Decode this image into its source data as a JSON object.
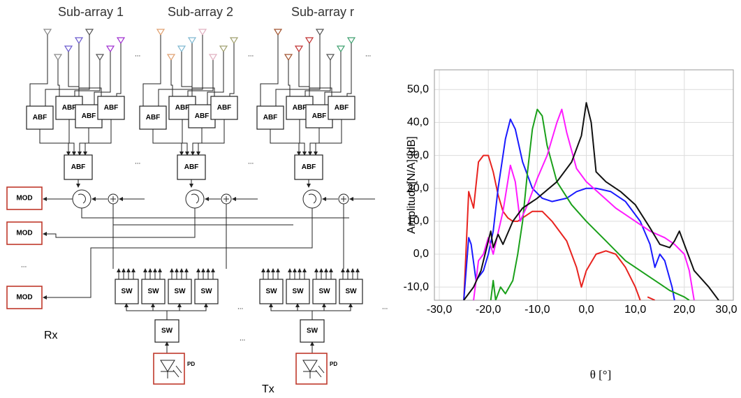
{
  "diagram": {
    "subarray_labels": [
      "Sub-array 1",
      "Sub-array 2",
      "Sub-array r"
    ],
    "abf": "ABF",
    "mod": "MOD",
    "sw": "SW",
    "pd": "PD",
    "rx": "Rx",
    "tx": "Tx",
    "ellipsis": "..."
  },
  "chart_data": {
    "type": "line",
    "x_label": "θ [°]",
    "y_label": "Amplitude[N/A] [dB]",
    "xlim": [
      -31,
      30
    ],
    "ylim": [
      -14,
      56
    ],
    "grid": true,
    "xticks": [
      {
        "value": -30,
        "label": "-30,0"
      },
      {
        "value": -20,
        "label": "-20,0"
      },
      {
        "value": -10,
        "label": "-10,0"
      },
      {
        "value": 0,
        "label": "0,0"
      },
      {
        "value": 10,
        "label": "10,0"
      },
      {
        "value": 20,
        "label": "20,0"
      },
      {
        "value": 30,
        "label": "30,0"
      }
    ],
    "yticks": [
      {
        "value": -10,
        "label": "-10,0"
      },
      {
        "value": 0,
        "label": "0,0"
      },
      {
        "value": 10,
        "label": "10,0"
      },
      {
        "value": 20,
        "label": "20,0"
      },
      {
        "value": 30,
        "label": "30,0"
      },
      {
        "value": 40,
        "label": "40,0"
      },
      {
        "value": 50,
        "label": "50,0"
      }
    ],
    "series": [
      {
        "color": "#e8231f",
        "x": [
          -25,
          -24,
          -23,
          -22,
          -21,
          -20,
          -19,
          -18,
          -17,
          -16,
          -15,
          -14,
          -13,
          -11,
          -9,
          -7,
          -4,
          -2,
          -1,
          0,
          2,
          4,
          6,
          8,
          10,
          11,
          12,
          12.5,
          14
        ],
        "values": [
          -14,
          19,
          14,
          28,
          30,
          30,
          25,
          18,
          13,
          11,
          10,
          10,
          11,
          13,
          13,
          10,
          4,
          -4,
          -10,
          -5,
          0,
          1,
          0,
          -4,
          -10,
          -14,
          null,
          -13,
          -14
        ]
      },
      {
        "color": "#1a1aff",
        "x": [
          -25,
          -24,
          -23.5,
          -22.5,
          -21,
          -20,
          -19,
          -18,
          -16.5,
          -15.5,
          -14.5,
          -13,
          -11,
          -9,
          -7,
          -4,
          -2,
          0,
          2,
          5,
          8,
          11,
          13,
          14,
          15,
          16,
          17.5,
          18
        ],
        "values": [
          -14,
          5,
          3,
          -8,
          -5,
          0,
          7,
          20,
          35,
          41,
          38,
          28,
          20,
          17,
          16,
          17,
          19,
          20,
          20,
          19,
          16,
          10,
          3,
          -4,
          0,
          -2,
          -10,
          -14
        ]
      },
      {
        "color": "#1aa01a",
        "x": [
          -19.5,
          -19,
          -18.5,
          -17.5,
          -16.5,
          -15,
          -14,
          -13,
          -12,
          -11,
          -10,
          -9,
          -8,
          -6,
          -3,
          0,
          4,
          8,
          12,
          15,
          17,
          20,
          21
        ],
        "values": [
          -14,
          -8,
          -14,
          -10,
          -12,
          -8,
          0,
          10,
          25,
          38,
          44,
          42,
          33,
          22,
          15,
          10,
          4,
          -2,
          -6,
          -9,
          -11,
          -13,
          -14
        ]
      },
      {
        "color": "#ff1aff",
        "x": [
          -23,
          -22,
          -21,
          -20,
          -19,
          -17,
          -15.5,
          -14.5,
          -13.5,
          -12,
          -10,
          -8,
          -6,
          -5,
          -4,
          -2,
          0,
          3,
          6,
          10,
          13,
          16,
          18,
          20,
          21,
          22
        ],
        "values": [
          -14,
          -2,
          0,
          5,
          0,
          13,
          27,
          22,
          10,
          15,
          23,
          30,
          40,
          44,
          37,
          26,
          22,
          18,
          14,
          10,
          7,
          5,
          3,
          0,
          -5,
          -14
        ]
      },
      {
        "color": "#111111",
        "x": [
          -25,
          -23,
          -21.5,
          -19.5,
          -19,
          -18,
          -17,
          -15,
          -13,
          -10,
          -6,
          -3,
          -1,
          0,
          1,
          2,
          4,
          7,
          10,
          13,
          15,
          17,
          18,
          19,
          20,
          22,
          25,
          27
        ],
        "values": [
          -14,
          -10,
          -5,
          7,
          2,
          6,
          3,
          10,
          14,
          17,
          22,
          28,
          36,
          46,
          40,
          25,
          22,
          19,
          15,
          8,
          3,
          2,
          4,
          7,
          3,
          -5,
          -10,
          -14
        ]
      }
    ]
  }
}
